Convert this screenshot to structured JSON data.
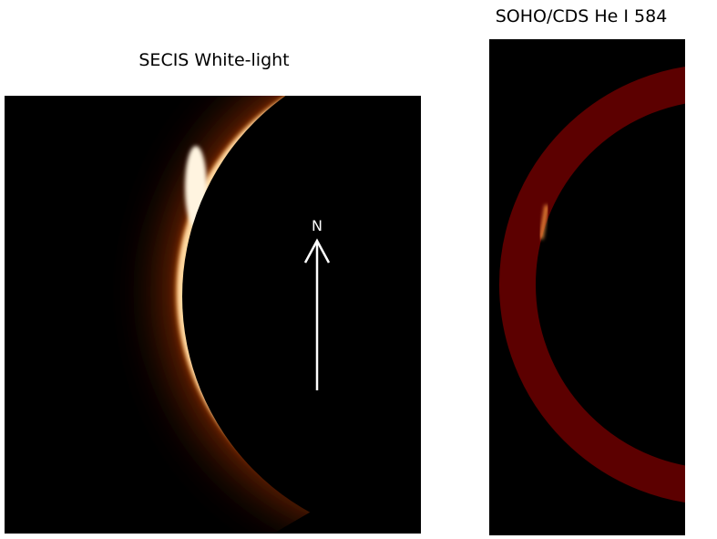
{
  "panels": [
    {
      "title": "SECIS White-light",
      "annotation": "N"
    },
    {
      "title": "SOHO/CDS He I 584"
    }
  ]
}
